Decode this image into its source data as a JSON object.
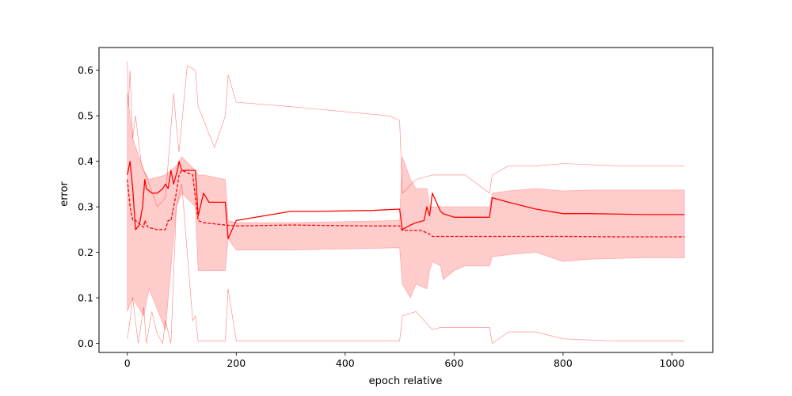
{
  "chart_data": {
    "type": "line",
    "title": "",
    "xlabel": "epoch relative",
    "ylabel": "error",
    "xlim": [
      -52,
      1075
    ],
    "ylim": [
      -0.02,
      0.65
    ],
    "xticks": [
      0,
      200,
      400,
      600,
      800,
      1000
    ],
    "yticks": [
      0.0,
      0.1,
      0.2,
      0.3,
      0.4,
      0.5,
      0.6
    ],
    "grid": false,
    "legend": "none",
    "color": "#ff0000",
    "series": [
      {
        "style": "solid",
        "x": [
          0,
          5,
          10,
          15,
          22,
          28,
          32,
          35,
          45,
          55,
          65,
          70,
          75,
          80,
          85,
          92,
          95,
          100,
          110,
          125,
          130,
          140,
          150,
          180,
          185,
          200,
          250,
          300,
          350,
          450,
          500,
          505,
          520,
          530,
          545,
          550,
          555,
          560,
          575,
          580,
          600,
          630,
          665,
          670,
          700,
          750,
          800,
          850,
          950,
          1023
        ],
        "values": [
          0.37,
          0.4,
          0.34,
          0.25,
          0.26,
          0.3,
          0.36,
          0.34,
          0.33,
          0.33,
          0.34,
          0.35,
          0.34,
          0.38,
          0.35,
          0.38,
          0.4,
          0.38,
          0.38,
          0.38,
          0.28,
          0.33,
          0.31,
          0.31,
          0.23,
          0.27,
          0.28,
          0.29,
          0.29,
          0.292,
          0.295,
          0.25,
          0.26,
          0.265,
          0.27,
          0.3,
          0.28,
          0.33,
          0.29,
          0.285,
          0.277,
          0.277,
          0.277,
          0.32,
          0.31,
          0.295,
          0.285,
          0.285,
          0.283,
          0.283
        ]
      },
      {
        "style": "dashed",
        "x": [
          0,
          5,
          10,
          15,
          30,
          32,
          38,
          55,
          70,
          75,
          80,
          90,
          95,
          100,
          120,
          130,
          140,
          180,
          200,
          300,
          450,
          500,
          505,
          540,
          555,
          560,
          575,
          800,
          900,
          1023
        ],
        "values": [
          0.36,
          0.3,
          0.27,
          0.27,
          0.255,
          0.27,
          0.255,
          0.25,
          0.25,
          0.27,
          0.27,
          0.33,
          0.37,
          0.38,
          0.37,
          0.27,
          0.265,
          0.26,
          0.258,
          0.26,
          0.258,
          0.258,
          0.248,
          0.248,
          0.24,
          0.235,
          0.235,
          0.235,
          0.234,
          0.234
        ]
      }
    ],
    "band": {
      "x": [
        0,
        10,
        30,
        40,
        70,
        90,
        100,
        125,
        130,
        140,
        180,
        185,
        200,
        300,
        500,
        505,
        520,
        530,
        550,
        555,
        560,
        575,
        580,
        600,
        620,
        665,
        670,
        700,
        750,
        800,
        850,
        950,
        1023
      ],
      "upper": [
        0.55,
        0.45,
        0.38,
        0.36,
        0.37,
        0.39,
        0.41,
        0.38,
        0.37,
        0.37,
        0.36,
        0.27,
        0.265,
        0.265,
        0.27,
        0.41,
        0.36,
        0.34,
        0.34,
        0.3,
        0.3,
        0.3,
        0.3,
        0.3,
        0.3,
        0.3,
        0.33,
        0.335,
        0.34,
        0.335,
        0.337,
        0.337,
        0.337
      ],
      "lower": [
        0.07,
        0.1,
        0.06,
        0.12,
        0.03,
        0.3,
        0.33,
        0.3,
        0.16,
        0.16,
        0.16,
        0.23,
        0.205,
        0.205,
        0.21,
        0.13,
        0.1,
        0.13,
        0.12,
        0.16,
        0.18,
        0.17,
        0.14,
        0.16,
        0.17,
        0.17,
        0.19,
        0.195,
        0.2,
        0.18,
        0.185,
        0.188,
        0.188
      ]
    },
    "envelope": {
      "upper": {
        "x": [
          0,
          2,
          5,
          10,
          15,
          20,
          25,
          30,
          40,
          55,
          70,
          85,
          90,
          95,
          110,
          125,
          130,
          160,
          180,
          185,
          200,
          300,
          480,
          500,
          505,
          530,
          560,
          575,
          600,
          620,
          665,
          670,
          700,
          750,
          800,
          900,
          1023
        ],
        "values": [
          0.62,
          0.52,
          0.6,
          0.45,
          0.5,
          0.45,
          0.4,
          0.38,
          0.35,
          0.3,
          0.32,
          0.55,
          0.48,
          0.42,
          0.61,
          0.6,
          0.52,
          0.43,
          0.5,
          0.59,
          0.53,
          0.52,
          0.5,
          0.49,
          0.33,
          0.36,
          0.37,
          0.37,
          0.37,
          0.37,
          0.33,
          0.37,
          0.39,
          0.39,
          0.395,
          0.39,
          0.39
        ]
      },
      "lower": {
        "x": [
          0,
          5,
          10,
          20,
          30,
          35,
          45,
          55,
          65,
          70,
          80,
          90,
          100,
          110,
          120,
          125,
          130,
          140,
          180,
          185,
          200,
          300,
          450,
          500,
          505,
          530,
          560,
          575,
          600,
          665,
          670,
          700,
          750,
          800,
          900,
          1023
        ],
        "values": [
          0.01,
          0.05,
          0.1,
          0.0,
          0.08,
          0.0,
          0.07,
          0.02,
          0.0,
          0.05,
          0.0,
          0.3,
          0.35,
          0.2,
          0.05,
          0.06,
          0.005,
          0.005,
          0.005,
          0.12,
          0.005,
          0.005,
          0.005,
          0.005,
          0.06,
          0.07,
          0.03,
          0.035,
          0.035,
          0.035,
          0.0,
          0.025,
          0.025,
          0.01,
          0.005,
          0.005
        ]
      }
    }
  }
}
